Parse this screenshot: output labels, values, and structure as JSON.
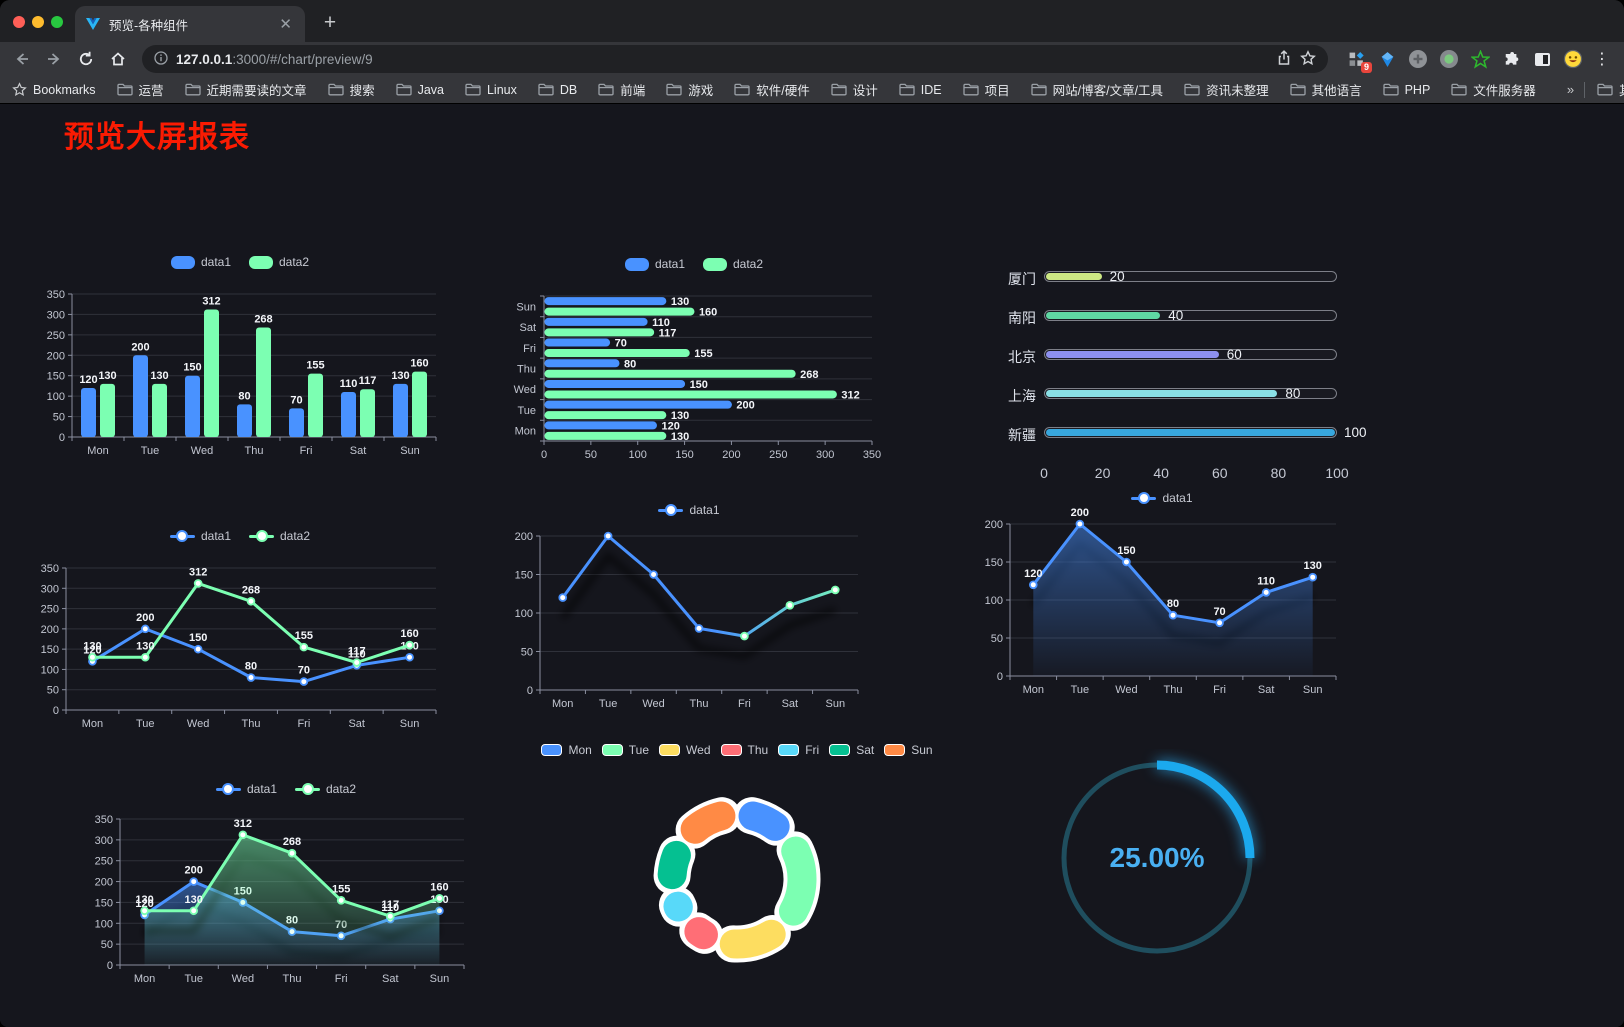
{
  "browser": {
    "tab_title": "预览-各种组件",
    "url_host": "127.0.0.1",
    "url_rest": ":3000/#/chart/preview/9",
    "extension_badge": "9",
    "bookmarks_label": "Bookmarks",
    "bookmark_folders": [
      "运营",
      "近期需要读的文章",
      "搜索",
      "Java",
      "Linux",
      "DB",
      "前端",
      "游戏",
      "软件/硬件",
      "设计",
      "IDE",
      "项目",
      "网站/博客/文章/工具",
      "资讯未整理",
      "其他语言",
      "PHP",
      "文件服务器"
    ],
    "overflow_chevron": "»",
    "other_bookmarks": "其他书签"
  },
  "page": {
    "title": "预览大屏报表",
    "title_color": "#fb1b02",
    "background": "#15161d"
  },
  "chart_data": [
    {
      "id": "bar-vertical",
      "type": "bar",
      "legend": "top",
      "legend_marker": "rect",
      "value_labels": true,
      "categories": [
        "Mon",
        "Tue",
        "Wed",
        "Thu",
        "Fri",
        "Sat",
        "Sun"
      ],
      "series": [
        {
          "name": "data1",
          "color": "#4992ff",
          "values": [
            120,
            200,
            150,
            80,
            70,
            110,
            130
          ]
        },
        {
          "name": "data2",
          "color": "#7cffb2",
          "values": [
            130,
            130,
            312,
            268,
            155,
            117,
            160
          ]
        }
      ],
      "ylim": [
        0,
        350
      ],
      "ystep": 50,
      "grid": true
    },
    {
      "id": "bar-horizontal",
      "type": "bar",
      "orientation": "horizontal",
      "legend": "top",
      "legend_marker": "rect",
      "value_labels": true,
      "categories": [
        "Mon",
        "Tue",
        "Wed",
        "Thu",
        "Fri",
        "Sat",
        "Sun"
      ],
      "series": [
        {
          "name": "data1",
          "color": "#4992ff",
          "values": [
            120,
            200,
            150,
            80,
            70,
            110,
            130
          ]
        },
        {
          "name": "data2",
          "color": "#7cffb2",
          "values": [
            130,
            130,
            312,
            268,
            155,
            117,
            160
          ]
        }
      ],
      "xlim": [
        0,
        350
      ],
      "xstep": 50,
      "grid": true
    },
    {
      "id": "progress-bars",
      "type": "bar",
      "orientation": "progress",
      "categories": [
        "厦门",
        "南阳",
        "北京",
        "上海",
        "新疆"
      ],
      "values": [
        20,
        40,
        60,
        80,
        100
      ],
      "bar_colors": [
        "#cde884",
        "#5fd7a3",
        "#8d90f0",
        "#8ae0e6",
        "#38a7de"
      ],
      "xlim": [
        0,
        100
      ],
      "xticks": [
        0,
        20,
        40,
        60,
        80,
        100
      ]
    },
    {
      "id": "line-two-series",
      "type": "line",
      "legend": "top",
      "legend_marker": "line",
      "value_labels": true,
      "categories": [
        "Mon",
        "Tue",
        "Wed",
        "Thu",
        "Fri",
        "Sat",
        "Sun"
      ],
      "series": [
        {
          "name": "data1",
          "color": "#4992ff",
          "values": [
            120,
            200,
            150,
            80,
            70,
            110,
            130
          ]
        },
        {
          "name": "data2",
          "color": "#7cffb2",
          "values": [
            130,
            130,
            312,
            268,
            155,
            117,
            160
          ]
        }
      ],
      "ylim": [
        0,
        350
      ],
      "ystep": 50,
      "grid": true
    },
    {
      "id": "line-gradient",
      "type": "line",
      "legend": "top",
      "legend_marker": "line",
      "value_labels": false,
      "shadow": true,
      "categories": [
        "Mon",
        "Tue",
        "Wed",
        "Thu",
        "Fri",
        "Sat",
        "Sun"
      ],
      "series": [
        {
          "name": "data1",
          "color": "#4992ff",
          "gradient": [
            "#4992ff",
            "#7cffb2"
          ],
          "values": [
            120,
            200,
            150,
            80,
            70,
            110,
            130
          ]
        }
      ],
      "ylim": [
        0,
        200
      ],
      "ystep": 50,
      "grid": true
    },
    {
      "id": "area-single",
      "type": "line",
      "legend": "top",
      "legend_marker": "line",
      "value_labels": true,
      "shadow": true,
      "categories": [
        "Mon",
        "Tue",
        "Wed",
        "Thu",
        "Fri",
        "Sat",
        "Sun"
      ],
      "series": [
        {
          "name": "data1",
          "color": "#4992ff",
          "area": true,
          "values": [
            120,
            200,
            150,
            80,
            70,
            110,
            130
          ]
        }
      ],
      "ylim": [
        0,
        200
      ],
      "ystep": 50,
      "grid": true
    },
    {
      "id": "area-two-series",
      "type": "line",
      "legend": "top",
      "legend_marker": "line",
      "value_labels": true,
      "shadow": true,
      "categories": [
        "Mon",
        "Tue",
        "Wed",
        "Thu",
        "Fri",
        "Sat",
        "Sun"
      ],
      "series": [
        {
          "name": "data1",
          "color": "#4992ff",
          "area": true,
          "values": [
            120,
            200,
            150,
            80,
            70,
            110,
            130
          ]
        },
        {
          "name": "data2",
          "color": "#7cffb2",
          "area": true,
          "values": [
            130,
            130,
            312,
            268,
            155,
            117,
            160
          ]
        }
      ],
      "ylim": [
        0,
        350
      ],
      "ystep": 50,
      "grid": true
    },
    {
      "id": "pie-donut",
      "type": "pie",
      "legend": "top",
      "categories": [
        "Mon",
        "Tue",
        "Wed",
        "Thu",
        "Fri",
        "Sat",
        "Sun"
      ],
      "values": [
        120,
        200,
        150,
        80,
        70,
        110,
        130
      ],
      "colors": [
        "#4992ff",
        "#7cffb2",
        "#fddd60",
        "#ff6e76",
        "#58d9f9",
        "#05c091",
        "#ff8a45"
      ],
      "inner_radius": 50,
      "outer_radius": 80,
      "border_color": "#ffffff"
    },
    {
      "id": "gauge-progress",
      "type": "gauge",
      "value": 25,
      "max": 100,
      "label": "25.00%",
      "color": "#1ba9ee",
      "track_color": "#1f4e5e",
      "label_color": "#49b0f2"
    }
  ]
}
